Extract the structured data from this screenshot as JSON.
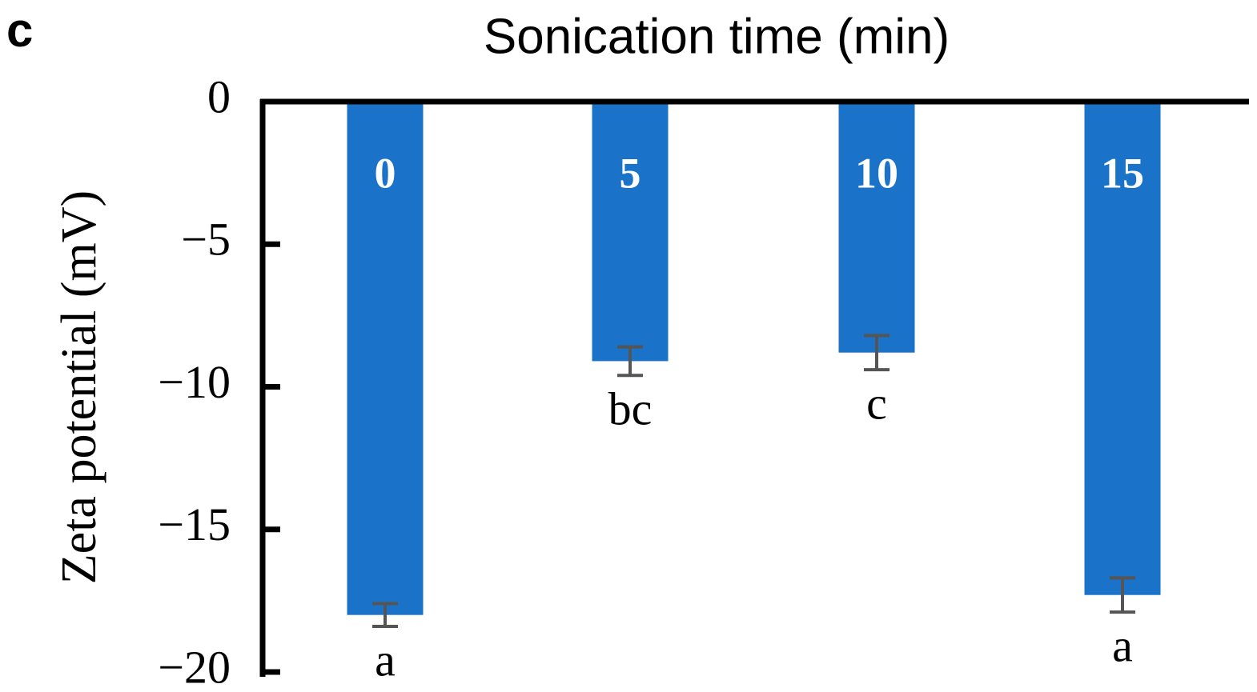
{
  "chart_data": {
    "type": "bar",
    "panel_label": "c",
    "title": "Sonication time (min)",
    "y_label": "Zeta potential (mV)",
    "categories": [
      "0",
      "5",
      "10",
      "15"
    ],
    "values": [
      -18.0,
      -9.1,
      -8.8,
      -17.3
    ],
    "errors": [
      0.4,
      0.5,
      0.6,
      0.6
    ],
    "letters": [
      "a",
      "bc",
      "c",
      "a"
    ],
    "color": "#1a73c8",
    "error_color": "#555555",
    "ylim": [
      -20,
      0
    ],
    "yticks": [
      0,
      {
        "value": -5,
        "label": "−5"
      },
      {
        "value": -10,
        "label": "−10"
      },
      {
        "value": -15,
        "label": "−15"
      },
      {
        "value": -20,
        "label": "−20"
      }
    ]
  }
}
